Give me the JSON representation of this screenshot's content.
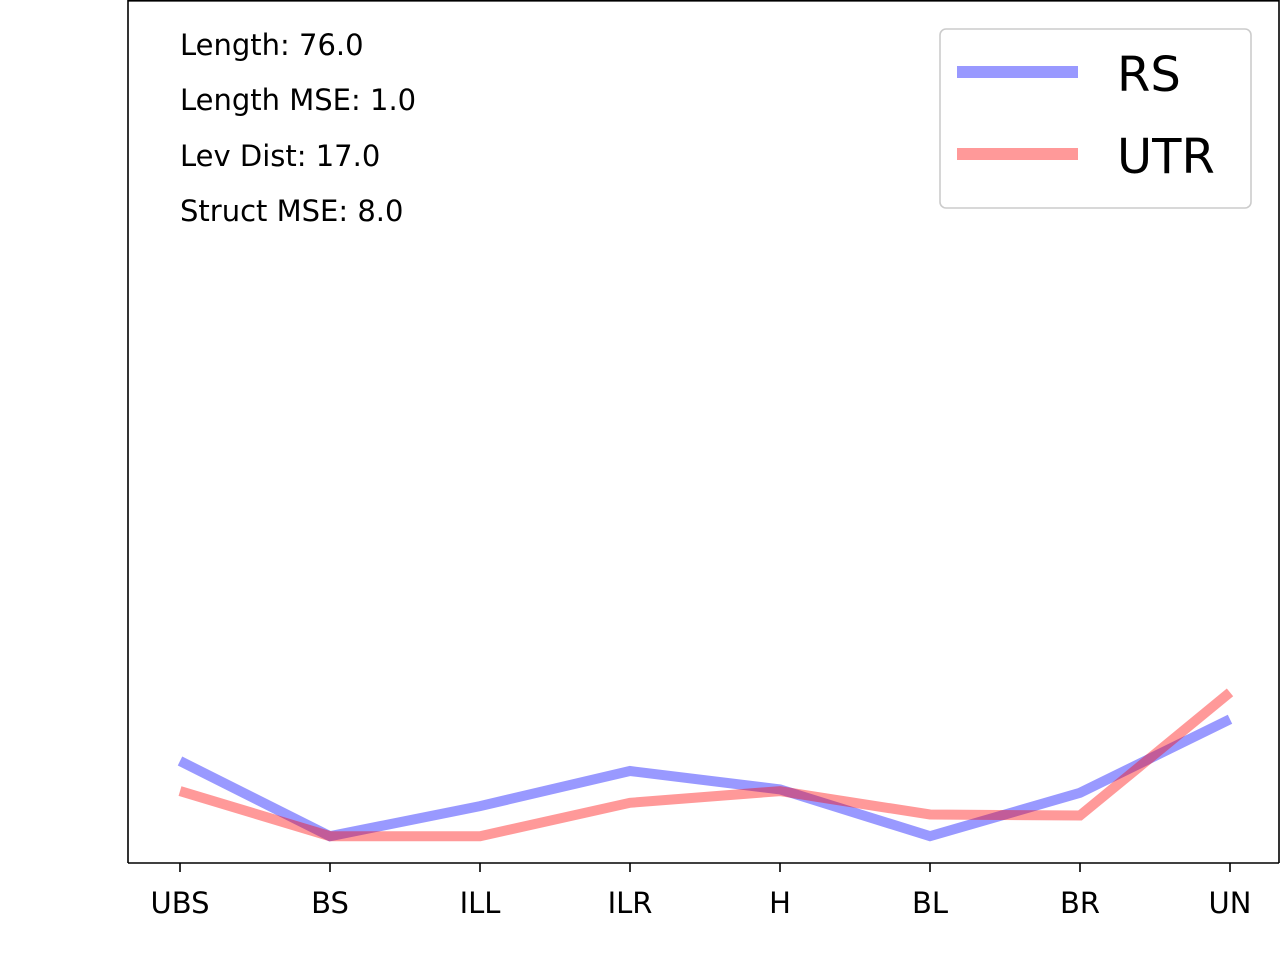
{
  "chart_data": {
    "type": "line",
    "categories": [
      "UBS",
      "BS",
      "ILL",
      "ILR",
      "H",
      "BL",
      "BR",
      "UN"
    ],
    "series": [
      {
        "name": "RS",
        "color": "#0000ff",
        "alpha": 0.4,
        "values": [
          2.25,
          0.0,
          0.9,
          1.95,
          1.4,
          0.0,
          1.3,
          3.5
        ]
      },
      {
        "name": "UTR",
        "color": "#ff0000",
        "alpha": 0.4,
        "values": [
          1.35,
          0.0,
          0.0,
          1.0,
          1.35,
          0.65,
          0.62,
          4.3
        ]
      }
    ],
    "ylim": [
      -0.8,
      25.0
    ],
    "grid": false,
    "y_ticks_visible": false,
    "legend": {
      "placement": "top-right",
      "entries": [
        "RS",
        "UTR"
      ]
    },
    "annotations": [
      "Length: 76.0",
      "Length MSE: 1.0",
      "Lev Dist: 17.0",
      "Struct MSE: 8.0"
    ],
    "title": "",
    "xlabel": "",
    "ylabel": ""
  }
}
